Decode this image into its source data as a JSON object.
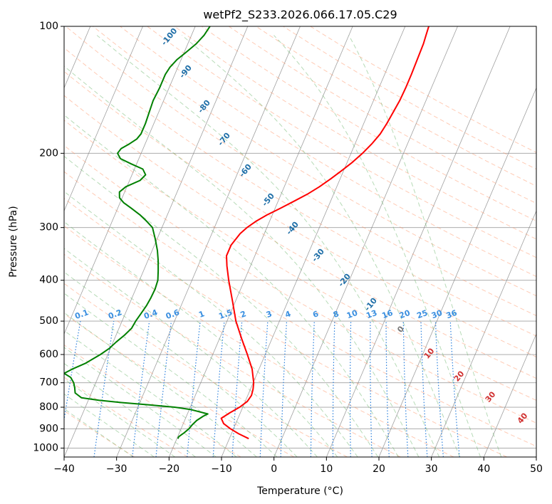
{
  "chart_data": {
    "type": "line",
    "chart_kind": "skew-t log-p",
    "title": "wetPf2_S233.2026.066.17.05.C29",
    "xlabel": "Temperature (°C)",
    "ylabel": "Pressure (hPa)",
    "xlim": [
      -40,
      50
    ],
    "ylim": [
      1050,
      100
    ],
    "y_scale": "log",
    "grid": true,
    "x_ticks": [
      -40,
      -30,
      -20,
      -10,
      0,
      10,
      20,
      30,
      40,
      50
    ],
    "x_tick_labels": [
      "−40",
      "−30",
      "−20",
      "−10",
      "0",
      "10",
      "20",
      "30",
      "40",
      "50"
    ],
    "y_ticks": [
      1000,
      900,
      800,
      700,
      600,
      500,
      400,
      300,
      200,
      100
    ],
    "y_tick_labels": [
      "1000",
      "900",
      "800",
      "700",
      "600",
      "500",
      "400",
      "300",
      "200",
      "100"
    ],
    "series": [
      {
        "color": "#ff0000",
        "values": [
          [
            950,
            -6.3
          ],
          [
            925,
            -8.6
          ],
          [
            900,
            -10.6
          ],
          [
            875,
            -12.3
          ],
          [
            850,
            -13.2
          ],
          [
            825,
            -12.0
          ],
          [
            800,
            -10.6
          ],
          [
            775,
            -9.6
          ],
          [
            750,
            -9.3
          ],
          [
            725,
            -9.5
          ],
          [
            700,
            -9.9
          ],
          [
            650,
            -11.3
          ],
          [
            600,
            -13.4
          ],
          [
            550,
            -15.8
          ],
          [
            500,
            -18.3
          ],
          [
            450,
            -20.5
          ],
          [
            400,
            -23.0
          ],
          [
            370,
            -24.5
          ],
          [
            350,
            -25.4
          ],
          [
            330,
            -25.4
          ],
          [
            310,
            -24.6
          ],
          [
            300,
            -23.8
          ],
          [
            290,
            -22.6
          ],
          [
            280,
            -21.0
          ],
          [
            270,
            -19.0
          ],
          [
            260,
            -17.0
          ],
          [
            250,
            -15.0
          ],
          [
            240,
            -13.3
          ],
          [
            230,
            -11.8
          ],
          [
            220,
            -10.4
          ],
          [
            210,
            -9.0
          ],
          [
            200,
            -7.8
          ],
          [
            190,
            -6.8
          ],
          [
            180,
            -6.0
          ],
          [
            170,
            -5.6
          ],
          [
            160,
            -5.3
          ],
          [
            150,
            -5.0
          ],
          [
            140,
            -4.9
          ],
          [
            130,
            -4.9
          ],
          [
            120,
            -5.0
          ],
          [
            110,
            -5.1
          ],
          [
            105,
            -5.3
          ],
          [
            100,
            -5.5
          ]
        ]
      },
      {
        "color": "#008000",
        "values": [
          [
            950,
            -19.8
          ],
          [
            940,
            -19.8
          ],
          [
            920,
            -19.1
          ],
          [
            900,
            -18.5
          ],
          [
            880,
            -18.2
          ],
          [
            860,
            -17.7
          ],
          [
            840,
            -16.8
          ],
          [
            830,
            -16.1
          ],
          [
            810,
            -19.8
          ],
          [
            800,
            -23.0
          ],
          [
            790,
            -28.0
          ],
          [
            780,
            -33.5
          ],
          [
            770,
            -38.0
          ],
          [
            760,
            -41.5
          ],
          [
            740,
            -43.1
          ],
          [
            720,
            -43.6
          ],
          [
            700,
            -44.2
          ],
          [
            680,
            -45.2
          ],
          [
            665,
            -46.8
          ],
          [
            650,
            -45.6
          ],
          [
            630,
            -43.6
          ],
          [
            600,
            -41.4
          ],
          [
            580,
            -40.2
          ],
          [
            560,
            -39.4
          ],
          [
            540,
            -38.4
          ],
          [
            520,
            -37.6
          ],
          [
            500,
            -37.4
          ],
          [
            480,
            -37.0
          ],
          [
            460,
            -36.6
          ],
          [
            440,
            -36.4
          ],
          [
            420,
            -36.3
          ],
          [
            400,
            -36.5
          ],
          [
            380,
            -37.2
          ],
          [
            360,
            -38.0
          ],
          [
            340,
            -39.0
          ],
          [
            320,
            -40.3
          ],
          [
            300,
            -41.8
          ],
          [
            290,
            -43.4
          ],
          [
            280,
            -45.2
          ],
          [
            270,
            -47.4
          ],
          [
            262,
            -49.3
          ],
          [
            255,
            -50.5
          ],
          [
            247,
            -51.0
          ],
          [
            240,
            -50.2
          ],
          [
            232,
            -48.0
          ],
          [
            225,
            -47.4
          ],
          [
            218,
            -48.4
          ],
          [
            212,
            -51.0
          ],
          [
            206,
            -53.5
          ],
          [
            200,
            -54.5
          ],
          [
            195,
            -54.2
          ],
          [
            190,
            -53.0
          ],
          [
            185,
            -52.0
          ],
          [
            180,
            -51.6
          ],
          [
            170,
            -51.6
          ],
          [
            160,
            -51.8
          ],
          [
            150,
            -52.0
          ],
          [
            140,
            -51.8
          ],
          [
            130,
            -51.8
          ],
          [
            125,
            -51.5
          ],
          [
            120,
            -50.8
          ],
          [
            115,
            -49.6
          ],
          [
            110,
            -48.4
          ],
          [
            105,
            -47.6
          ],
          [
            100,
            -47.2
          ]
        ]
      }
    ],
    "dry_adiabat_labels": [
      "-100",
      "-90",
      "-80",
      "-70",
      "-60",
      "-50",
      "-40",
      "-30",
      "-20",
      "-10"
    ],
    "moist_adiabat_labels": [
      "0",
      "10",
      "20",
      "30",
      "40"
    ],
    "mixing_ratio_labels": [
      "0.1",
      "0.2",
      "0.4",
      "0.6",
      "1",
      "1.5",
      "2",
      "3",
      "4",
      "6",
      "8",
      "10",
      "13",
      "16",
      "20",
      "25",
      "30",
      "36"
    ],
    "colors": {
      "temperature": "#ff0000",
      "dewpoint": "#008000",
      "isotherms": "#808080",
      "isobars": "#a0a0a0",
      "dry_adiabats": "#ff8c5a",
      "moist_adiabats": "#70b870",
      "mixing_ratio": "#2a7fdc"
    }
  }
}
